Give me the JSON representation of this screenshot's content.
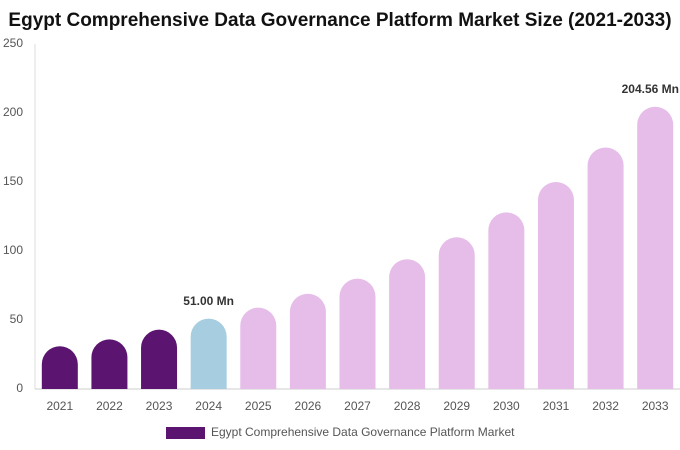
{
  "chart_data": {
    "type": "bar",
    "title": "Egypt Comprehensive Data Governance Platform Market Size (2021-2033)",
    "categories": [
      "2021",
      "2022",
      "2023",
      "2024",
      "2025",
      "2026",
      "2027",
      "2028",
      "2029",
      "2030",
      "2031",
      "2032",
      "2033"
    ],
    "series": [
      {
        "name": "Egypt Comprehensive Data Governance Platform Market",
        "color": "#5b1570",
        "colors": [
          "#5b1570",
          "#5b1570",
          "#5b1570",
          "#a6cde0",
          "#e6bde9",
          "#e6bde9",
          "#e6bde9",
          "#e6bde9",
          "#e6bde9",
          "#e6bde9",
          "#e6bde9",
          "#e6bde9",
          "#e6bde9"
        ],
        "values": [
          31,
          36,
          43,
          51.0,
          59,
          69,
          80,
          94,
          110,
          128,
          150,
          175,
          204.56
        ],
        "value_labels": [
          null,
          null,
          null,
          "51.00 Mn",
          null,
          null,
          null,
          null,
          null,
          null,
          null,
          null,
          "204.56 Mn"
        ]
      }
    ],
    "ylim": [
      0,
      250
    ],
    "yticks": [
      0,
      50,
      100,
      150,
      200,
      250
    ],
    "grid": false,
    "legend": "bottom"
  }
}
